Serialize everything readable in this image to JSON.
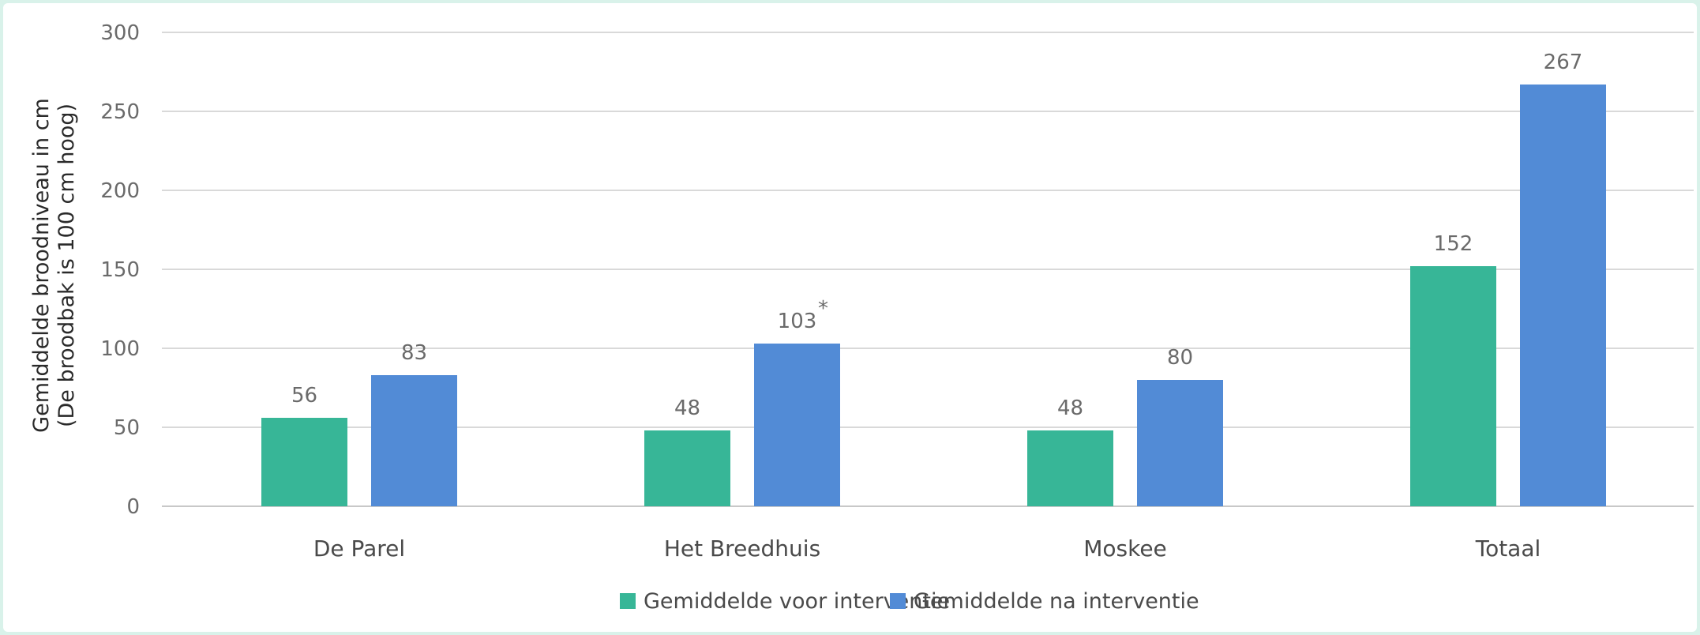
{
  "colors": {
    "voor": "#37b697",
    "na": "#528bd6"
  },
  "chart_data": {
    "type": "bar",
    "title": "",
    "ylabel_lines": [
      "Gemiddelde broodniveau in cm",
      "(De broodbak is 100 cm hoog)"
    ],
    "xlabel": "",
    "ylim": [
      0,
      300
    ],
    "yticks": [
      0,
      50,
      100,
      150,
      200,
      250,
      300
    ],
    "grid": true,
    "legend_placement": "bottom",
    "categories": [
      "De Parel",
      "Het Breedhuis",
      "Moskee",
      "Totaal"
    ],
    "series": [
      {
        "name": "Gemiddelde voor interventie",
        "values": [
          56,
          48,
          48,
          152
        ],
        "labels": [
          "56",
          "48",
          "48",
          "152"
        ]
      },
      {
        "name": "Gemiddelde na interventie",
        "values": [
          83,
          103,
          80,
          267
        ],
        "labels": [
          "83",
          "103",
          "80",
          "267"
        ]
      }
    ],
    "annotations": [
      {
        "text": "*",
        "series": 1,
        "category": 1
      }
    ]
  }
}
